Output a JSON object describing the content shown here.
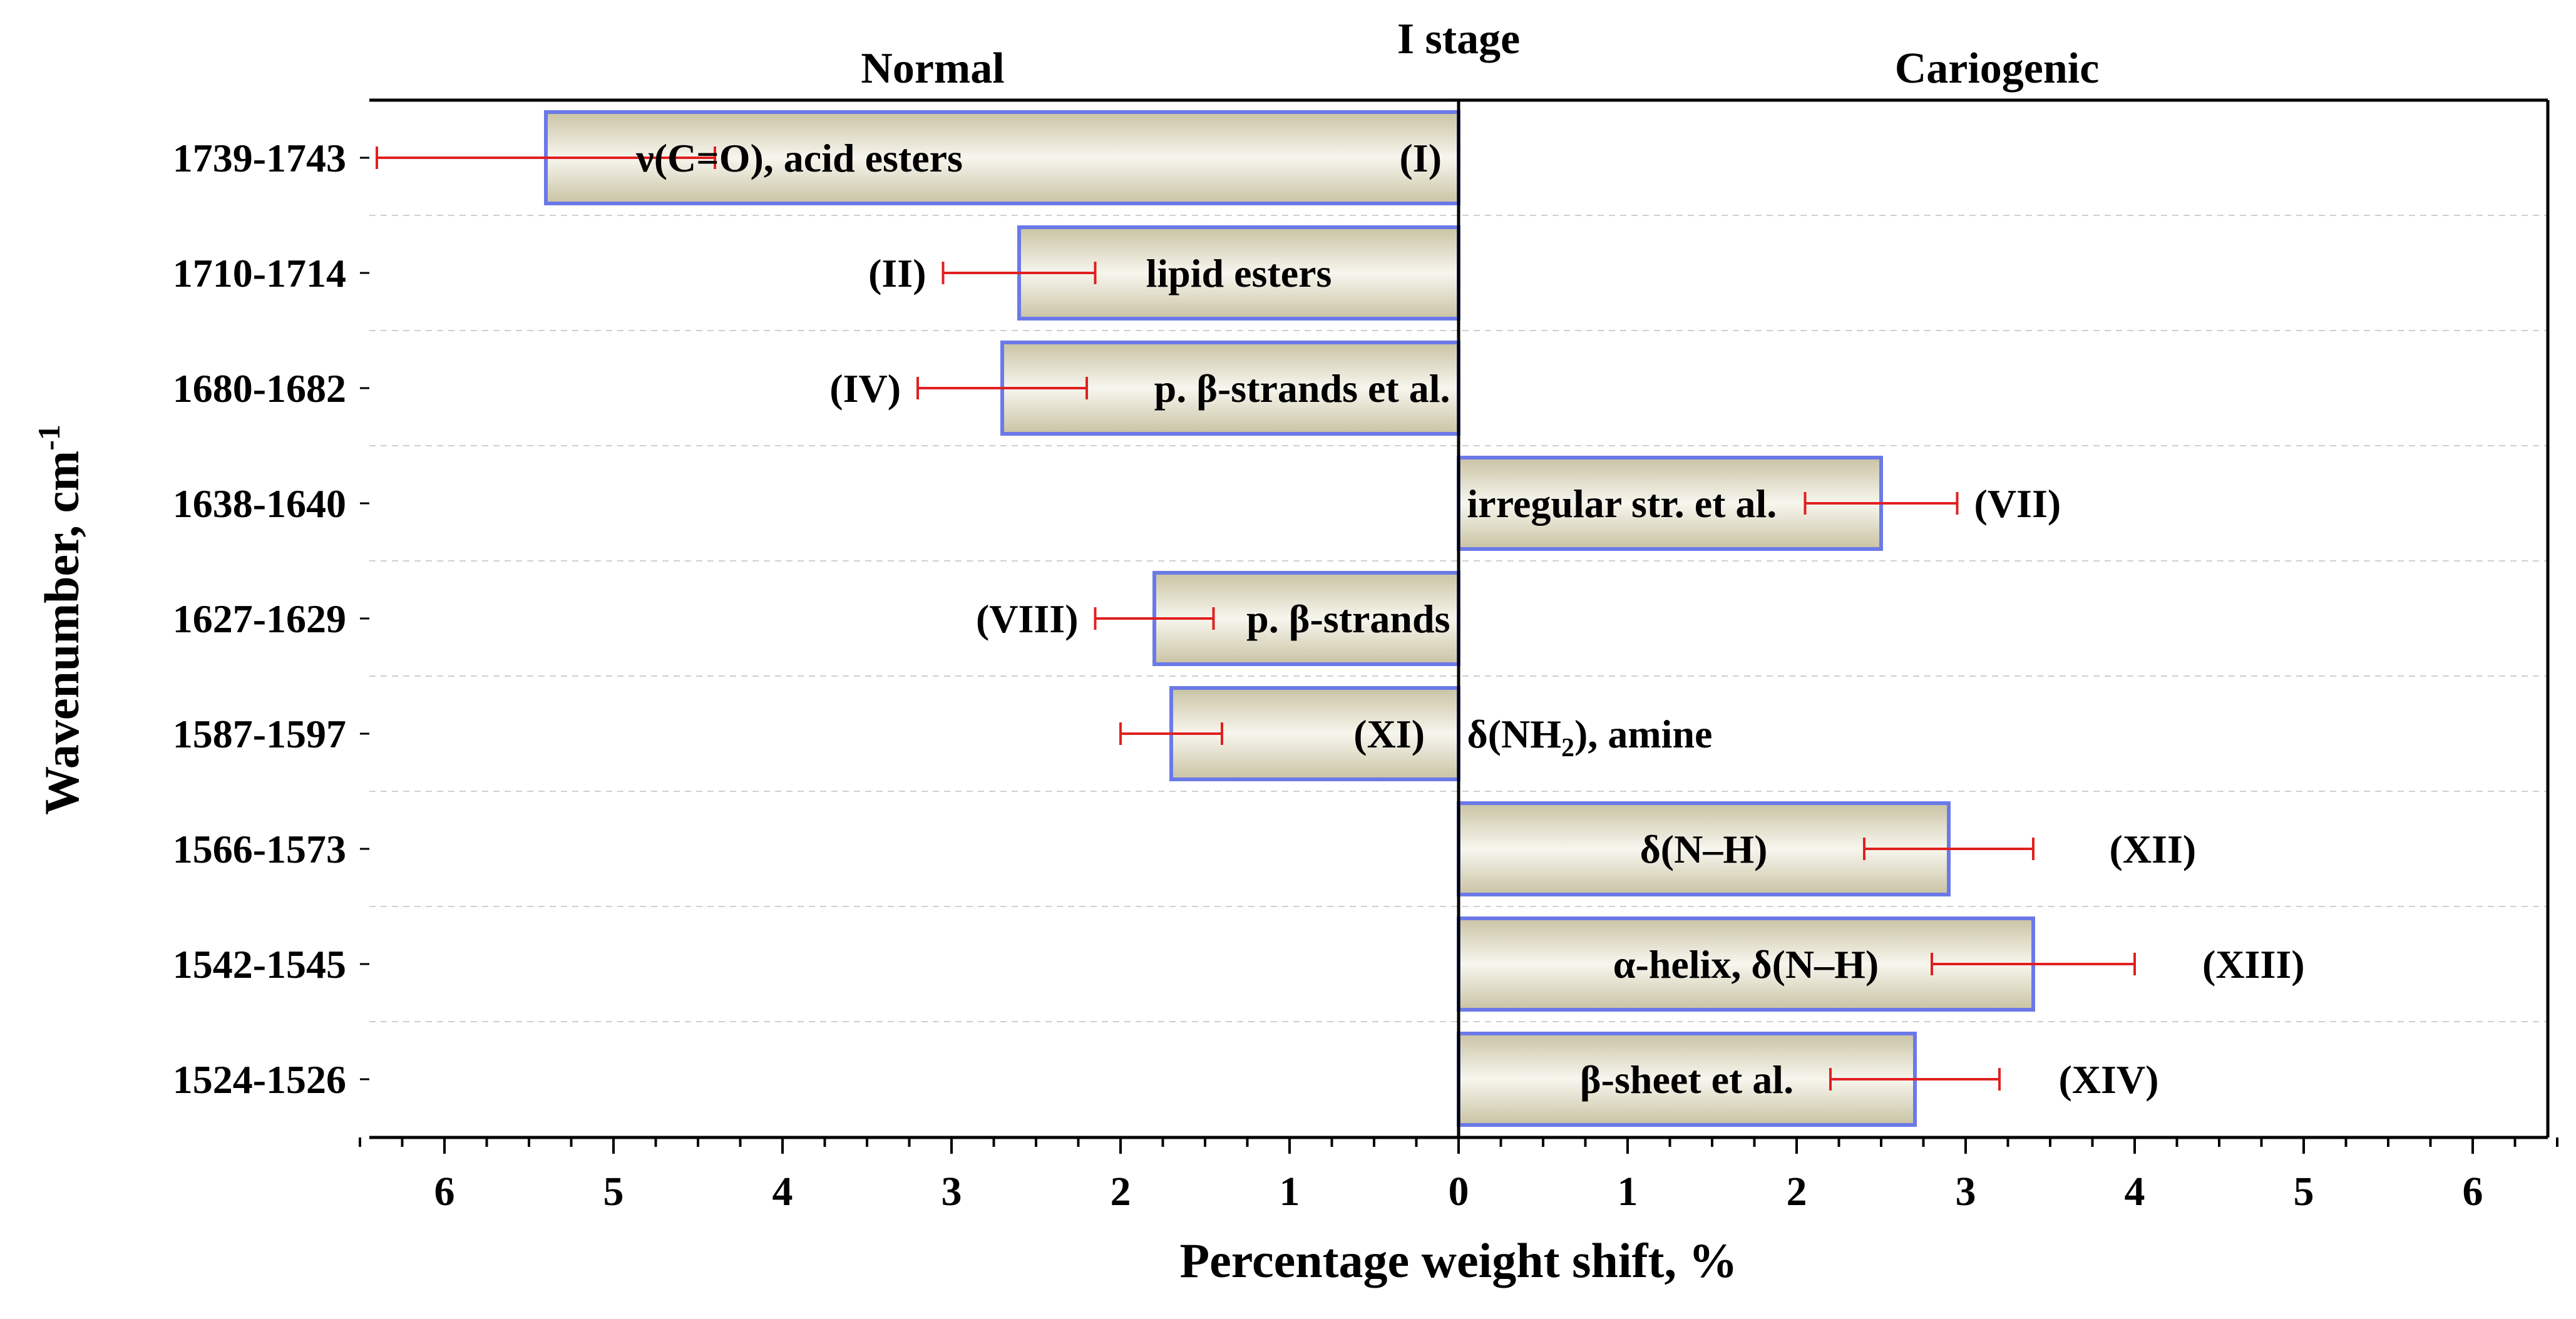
{
  "chart_data": {
    "type": "bar",
    "orientation": "horizontal",
    "title": "I stage",
    "left_group_label": "Normal",
    "right_group_label": "Cariogenic",
    "xlabel": "Percentage weight shift, %",
    "ylabel_main": "Wavenumber, cm",
    "ylabel_sup": "-1",
    "xlim": [
      -6.5,
      6.5
    ],
    "x_ticks": [
      -6,
      -5,
      -4,
      -3,
      -2,
      -1,
      0,
      1,
      2,
      3,
      4,
      5,
      6
    ],
    "x_tick_labels": [
      "6",
      "5",
      "4",
      "3",
      "2",
      "1",
      "0",
      "1",
      "2",
      "3",
      "4",
      "5",
      "6"
    ],
    "grid": "horizontal dashed",
    "colors": {
      "bar_fill_dark": "#c9c3a3",
      "bar_fill_light": "#f7f6ee",
      "bar_border": "#6b79e8",
      "error_bar": "#e02020"
    },
    "categories": [
      "1739-1743",
      "1710-1714",
      "1680-1682",
      "1638-1640",
      "1627-1629",
      "1587-1597",
      "1566-1573",
      "1542-1545",
      "1524-1526"
    ],
    "values": [
      -5.4,
      -2.6,
      -2.7,
      2.5,
      -1.8,
      -1.7,
      2.9,
      3.4,
      2.7
    ],
    "error_low": [
      -6.4,
      -3.05,
      -3.2,
      2.05,
      -2.15,
      -2.0,
      2.4,
      2.8,
      2.2
    ],
    "error_high": [
      -4.4,
      -2.15,
      -2.2,
      2.95,
      -1.45,
      -1.4,
      3.4,
      4.0,
      3.2
    ],
    "roman_labels": [
      "(I)",
      "(II)",
      "(IV)",
      "(VII)",
      "(VIII)",
      "(XI)",
      "(XII)",
      "(XIII)",
      "(XIV)"
    ],
    "assignments": [
      "ν(C=O), acid esters",
      "lipid esters",
      "p. β-strands et al.",
      "irregular str. et al.",
      "p. β-strands",
      "δ(NH",
      "δ(N–H)",
      "α-helix, δ(N–H)",
      "β-sheet et al."
    ],
    "assignment_extras": {
      "amine_sub": "2",
      "amine_tail": "), amine"
    }
  }
}
